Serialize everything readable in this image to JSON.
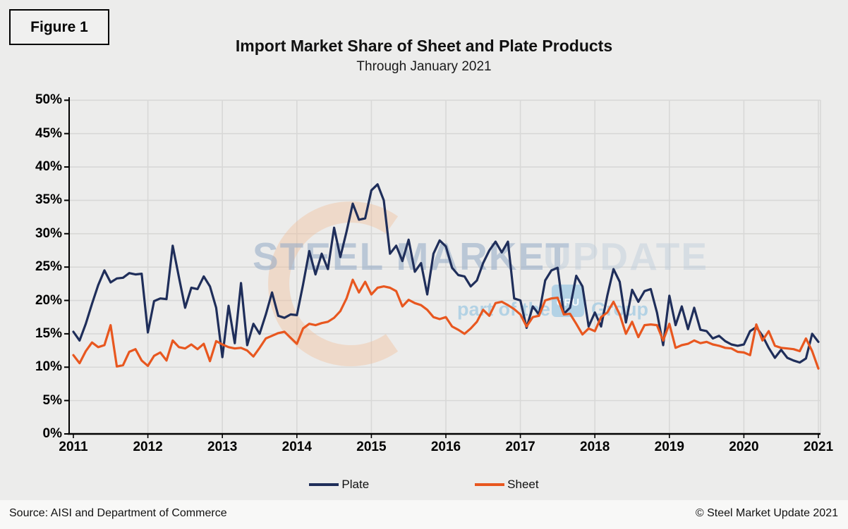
{
  "figure_label": "Figure 1",
  "title": "Import Market Share of Sheet and Plate Products",
  "subtitle": "Through January 2021",
  "footer": {
    "source": "Source: AISI and Department of Commerce",
    "copyright": "© Steel Market Update 2021"
  },
  "watermark": {
    "line1_strong": "STEEL MARKET",
    "line1_light": "UPDATE",
    "line2_prefix": "part of the",
    "line2_box": "CRU",
    "line2_suffix": "Group"
  },
  "colors": {
    "plate": "#1f2e5a",
    "sheet": "#e8571f",
    "background": "#ececeb",
    "gridline": "#d8d8d7",
    "axis": "#000000",
    "watermark_text": "#93a9c6",
    "watermark_light": "#bccbdb",
    "watermark_blue": "#a5cce3",
    "watermark_peach": "#f0bf9b"
  },
  "chart_data": {
    "type": "line",
    "title": "Import Market Share of Sheet and Plate Products",
    "subtitle": "Through January 2021",
    "frequency": "monthly",
    "x_start": "2011-01",
    "x_end": "2021-01",
    "x_tick_labels": [
      "2011",
      "2012",
      "2013",
      "2014",
      "2015",
      "2016",
      "2017",
      "2018",
      "2019",
      "2020",
      "2021"
    ],
    "y_ticks": [
      "0%",
      "5%",
      "10%",
      "15%",
      "20%",
      "25%",
      "30%",
      "35%",
      "40%",
      "45%",
      "50%"
    ],
    "ylim": [
      0,
      50
    ],
    "y_unit": "percent",
    "grid": true,
    "legend_position": "bottom",
    "series": [
      {
        "name": "Plate",
        "color": "#1f2e5a",
        "values": [
          15.3,
          14.0,
          16.5,
          19.5,
          22.3,
          24.5,
          22.7,
          23.3,
          23.4,
          24.1,
          23.9,
          24.0,
          15.2,
          19.9,
          20.3,
          20.2,
          28.2,
          23.5,
          18.9,
          21.9,
          21.7,
          23.6,
          22.1,
          18.9,
          11.5,
          19.2,
          13.6,
          22.6,
          13.3,
          16.5,
          15.0,
          17.9,
          21.2,
          17.7,
          17.4,
          17.9,
          17.8,
          22.4,
          27.4,
          23.9,
          27.0,
          24.7,
          30.9,
          26.5,
          30.3,
          34.5,
          32.1,
          32.3,
          36.5,
          37.4,
          35.0,
          27.0,
          28.2,
          25.9,
          29.1,
          24.3,
          25.6,
          20.9,
          27.0,
          29.0,
          28.1,
          24.9,
          23.8,
          23.6,
          22.1,
          23.0,
          25.6,
          27.5,
          28.8,
          27.2,
          28.8,
          20.3,
          20.0,
          15.9,
          19.1,
          17.9,
          23.0,
          24.5,
          24.9,
          18.0,
          18.9,
          23.7,
          22.1,
          16.1,
          18.2,
          16.1,
          20.7,
          24.7,
          22.8,
          16.7,
          21.6,
          19.8,
          21.4,
          21.7,
          18.2,
          13.3,
          20.7,
          16.3,
          19.1,
          15.7,
          18.9,
          15.6,
          15.4,
          14.3,
          14.7,
          13.9,
          13.4,
          13.2,
          13.4,
          15.4,
          16.0,
          14.7,
          12.9,
          11.4,
          12.6,
          11.4,
          11.0,
          10.7,
          11.3,
          15.0,
          13.8
        ]
      },
      {
        "name": "Sheet",
        "color": "#e8571f",
        "values": [
          11.8,
          10.6,
          12.4,
          13.7,
          13.0,
          13.3,
          16.3,
          10.1,
          10.3,
          12.3,
          12.7,
          11.0,
          10.2,
          11.7,
          12.2,
          11.0,
          14.0,
          13.0,
          12.8,
          13.4,
          12.7,
          13.5,
          10.9,
          13.9,
          13.4,
          13.0,
          12.8,
          12.9,
          12.5,
          11.6,
          12.9,
          14.3,
          14.7,
          15.1,
          15.3,
          14.4,
          13.5,
          15.8,
          16.5,
          16.3,
          16.6,
          16.8,
          17.4,
          18.4,
          20.3,
          23.1,
          21.2,
          22.8,
          20.9,
          21.9,
          22.1,
          21.9,
          21.4,
          19.1,
          20.1,
          19.6,
          19.3,
          18.6,
          17.5,
          17.2,
          17.5,
          16.1,
          15.6,
          15.0,
          15.8,
          16.8,
          18.6,
          17.7,
          19.6,
          19.8,
          19.3,
          18.7,
          17.9,
          16.1,
          17.5,
          17.7,
          20.0,
          20.3,
          20.4,
          17.9,
          18.0,
          16.5,
          14.9,
          15.8,
          15.4,
          17.5,
          18.2,
          19.8,
          17.9,
          15.0,
          16.8,
          14.5,
          16.3,
          16.4,
          16.3,
          14.0,
          16.5,
          12.9,
          13.3,
          13.5,
          14.0,
          13.6,
          13.8,
          13.4,
          13.2,
          12.9,
          12.8,
          12.3,
          12.2,
          11.8,
          16.4,
          14.0,
          15.4,
          13.2,
          12.9,
          12.8,
          12.7,
          12.4,
          14.3,
          12.4,
          9.8
        ]
      }
    ]
  }
}
